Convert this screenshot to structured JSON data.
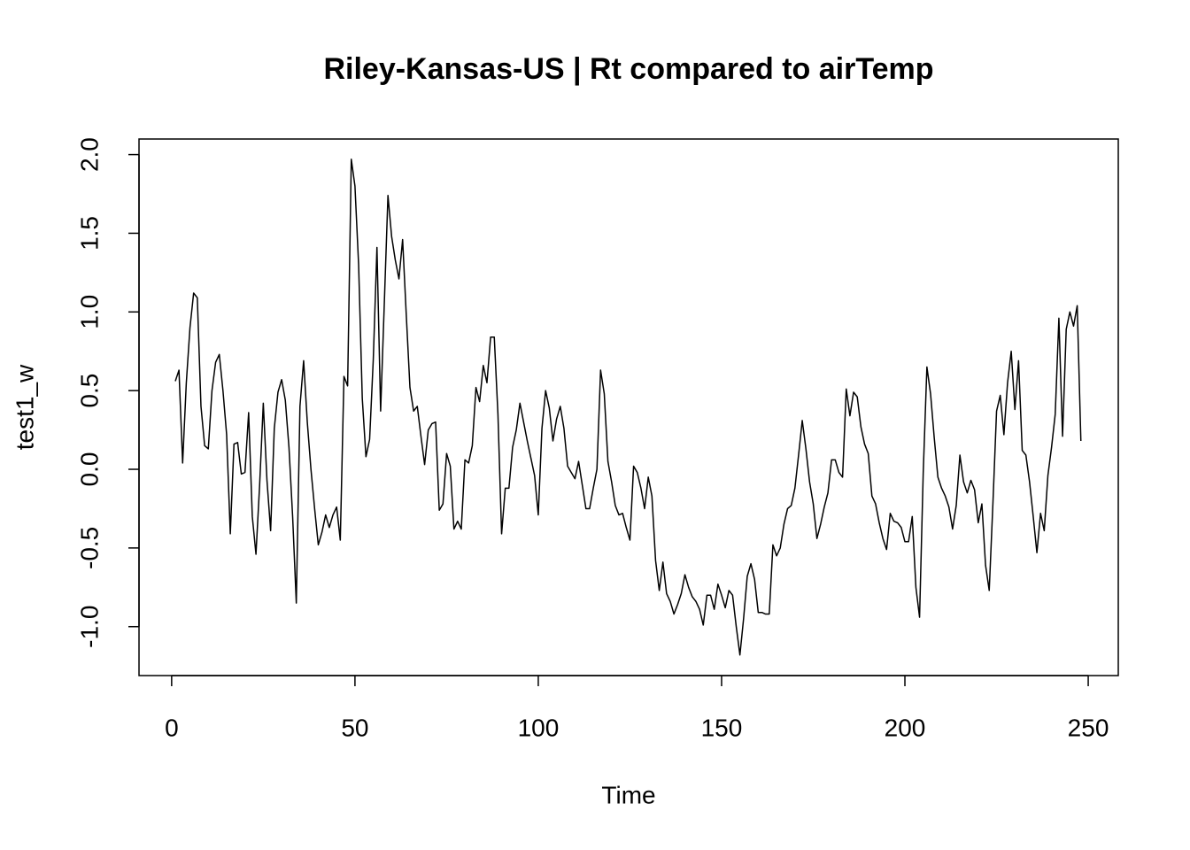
{
  "chart_data": {
    "type": "line",
    "title": "Riley-Kansas-US | Rt compared to airTemp",
    "x_label": "Time",
    "y_label": "test1_w",
    "color": "#000000",
    "xlim": [
      -8.9,
      258.2
    ],
    "ylim": [
      -1.311,
      2.099
    ],
    "xticks": [
      0,
      50,
      100,
      150,
      200,
      250
    ],
    "yticks": [
      {
        "value": -1,
        "label": "-1.0"
      },
      {
        "value": -0.5,
        "label": "-0.5"
      },
      {
        "value": 0,
        "label": "0.0"
      },
      {
        "value": 0.5,
        "label": "0.5"
      },
      {
        "value": 1,
        "label": "1.0"
      },
      {
        "value": 1.5,
        "label": "1.5"
      },
      {
        "value": 2,
        "label": "2.0"
      }
    ],
    "x": [
      1,
      2,
      3,
      4,
      5,
      6,
      7,
      8,
      9,
      10,
      11,
      12,
      13,
      14,
      15,
      16,
      17,
      18,
      19,
      20,
      21,
      22,
      23,
      24,
      25,
      26,
      27,
      28,
      29,
      30,
      31,
      32,
      33,
      34,
      35,
      36,
      37,
      38,
      39,
      40,
      41,
      42,
      43,
      44,
      45,
      46,
      47,
      48,
      49,
      50,
      51,
      52,
      53,
      54,
      55,
      56,
      57,
      58,
      59,
      60,
      61,
      62,
      63,
      64,
      65,
      66,
      67,
      68,
      69,
      70,
      71,
      72,
      73,
      74,
      75,
      76,
      77,
      78,
      79,
      80,
      81,
      82,
      83,
      84,
      85,
      86,
      87,
      88,
      89,
      90,
      91,
      92,
      93,
      94,
      95,
      96,
      97,
      98,
      99,
      100,
      101,
      102,
      103,
      104,
      105,
      106,
      107,
      108,
      109,
      110,
      111,
      112,
      113,
      114,
      115,
      116,
      117,
      118,
      119,
      120,
      121,
      122,
      123,
      124,
      125,
      126,
      127,
      128,
      129,
      130,
      131,
      132,
      133,
      134,
      135,
      136,
      137,
      138,
      139,
      140,
      141,
      142,
      143,
      144,
      145,
      146,
      147,
      148,
      149,
      150,
      151,
      152,
      153,
      154,
      155,
      156,
      157,
      158,
      159,
      160,
      161,
      162,
      163,
      164,
      165,
      166,
      167,
      168,
      169,
      170,
      171,
      172,
      173,
      174,
      175,
      176,
      177,
      178,
      179,
      180,
      181,
      182,
      183,
      184,
      185,
      186,
      187,
      188,
      189,
      190,
      191,
      192,
      193,
      194,
      195,
      196,
      197,
      198,
      199,
      200,
      201,
      202,
      203,
      204,
      205,
      206,
      207,
      208,
      209,
      210,
      211,
      212,
      213,
      214,
      215,
      216,
      217,
      218,
      219,
      220,
      221,
      222,
      223,
      224,
      225,
      226,
      227,
      228,
      229,
      230,
      231,
      232,
      233,
      234,
      235,
      236,
      237,
      238,
      239,
      240,
      241,
      242,
      243,
      244,
      245,
      246,
      247,
      248
    ],
    "values": [
      0.56,
      0.63,
      0.04,
      0.55,
      0.9,
      1.12,
      1.09,
      0.4,
      0.15,
      0.13,
      0.5,
      0.68,
      0.73,
      0.5,
      0.22,
      -0.41,
      0.16,
      0.17,
      -0.03,
      -0.02,
      0.36,
      -0.3,
      -0.54,
      -0.1,
      0.42,
      -0.07,
      -0.39,
      0.26,
      0.49,
      0.57,
      0.44,
      0.14,
      -0.3,
      -0.85,
      0.4,
      0.69,
      0.3,
      0.0,
      -0.25,
      -0.48,
      -0.4,
      -0.29,
      -0.37,
      -0.29,
      -0.24,
      -0.45,
      0.59,
      0.53,
      1.97,
      1.8,
      1.3,
      0.45,
      0.08,
      0.19,
      0.7,
      1.41,
      0.37,
      1.05,
      1.74,
      1.48,
      1.33,
      1.21,
      1.46,
      0.98,
      0.52,
      0.37,
      0.4,
      0.21,
      0.03,
      0.25,
      0.29,
      0.3,
      -0.26,
      -0.22,
      0.1,
      0.02,
      -0.38,
      -0.33,
      -0.38,
      0.06,
      0.04,
      0.15,
      0.52,
      0.43,
      0.66,
      0.55,
      0.84,
      0.84,
      0.35,
      -0.41,
      -0.12,
      -0.12,
      0.14,
      0.25,
      0.42,
      0.3,
      0.18,
      0.07,
      -0.04,
      -0.29,
      0.26,
      0.5,
      0.39,
      0.18,
      0.32,
      0.4,
      0.26,
      0.02,
      -0.02,
      -0.06,
      0.05,
      -0.1,
      -0.25,
      -0.25,
      -0.12,
      0.0,
      0.63,
      0.48,
      0.05,
      -0.08,
      -0.23,
      -0.29,
      -0.28,
      -0.37,
      -0.45,
      0.02,
      -0.02,
      -0.12,
      -0.25,
      -0.05,
      -0.17,
      -0.58,
      -0.77,
      -0.59,
      -0.79,
      -0.84,
      -0.92,
      -0.86,
      -0.79,
      -0.67,
      -0.75,
      -0.81,
      -0.84,
      -0.89,
      -0.99,
      -0.8,
      -0.8,
      -0.89,
      -0.73,
      -0.8,
      -0.88,
      -0.77,
      -0.8,
      -1.0,
      -1.18,
      -0.95,
      -0.68,
      -0.6,
      -0.7,
      -0.91,
      -0.91,
      -0.92,
      -0.92,
      -0.48,
      -0.55,
      -0.5,
      -0.35,
      -0.25,
      -0.23,
      -0.12,
      0.09,
      0.31,
      0.13,
      -0.08,
      -0.22,
      -0.44,
      -0.35,
      -0.24,
      -0.15,
      0.06,
      0.06,
      -0.02,
      -0.05,
      0.51,
      0.34,
      0.49,
      0.46,
      0.27,
      0.16,
      0.1,
      -0.17,
      -0.22,
      -0.34,
      -0.44,
      -0.51,
      -0.28,
      -0.33,
      -0.34,
      -0.37,
      -0.46,
      -0.46,
      -0.3,
      -0.75,
      -0.94,
      -0.02,
      0.65,
      0.48,
      0.2,
      -0.05,
      -0.12,
      -0.17,
      -0.24,
      -0.38,
      -0.23,
      0.09,
      -0.08,
      -0.15,
      -0.07,
      -0.13,
      -0.34,
      -0.22,
      -0.61,
      -0.77,
      -0.22,
      0.37,
      0.47,
      0.22,
      0.55,
      0.75,
      0.38,
      0.69,
      0.12,
      0.09,
      -0.08,
      -0.3,
      -0.53,
      -0.28,
      -0.39,
      -0.04,
      0.14,
      0.35,
      0.96,
      0.21,
      0.89,
      1.0,
      0.91,
      1.04,
      0.18
    ]
  }
}
